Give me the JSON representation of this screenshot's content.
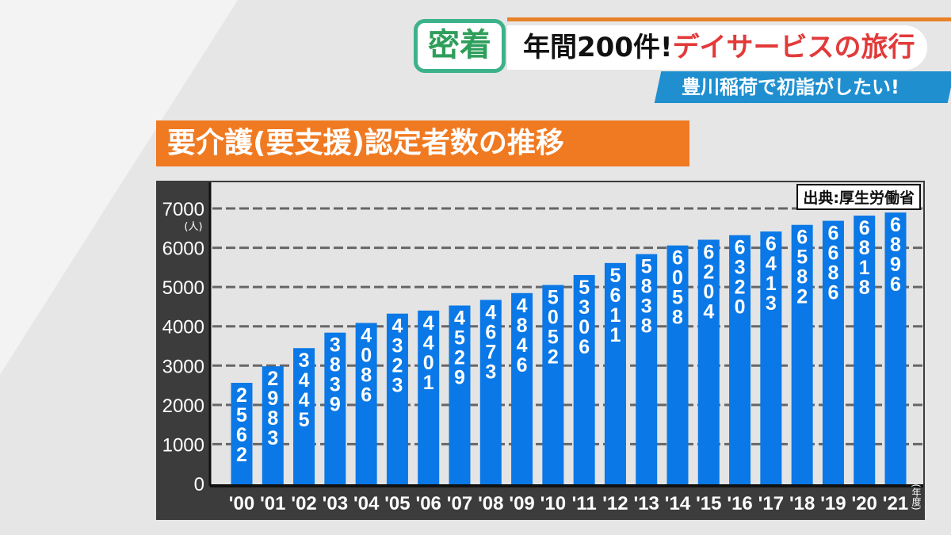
{
  "header": {
    "logo": "密着",
    "headline_black": "年間200件!",
    "headline_red": "デイサービスの旅行",
    "subtitle": "豊川稲荷で初詣がしたい!"
  },
  "colors": {
    "bar": "#0a78e6",
    "title_bg": "#f07a22",
    "subtitle_bg": "#1f8fd0",
    "headline_red": "#e23a3a"
  },
  "chart_data": {
    "type": "bar",
    "title": "要介護(要支援)認定者数の推移",
    "source": "出典:厚生労働省",
    "ylabel": "(人)",
    "xlabel": "(年度)",
    "ylim": [
      0,
      7000
    ],
    "yticks": [
      0,
      1000,
      2000,
      3000,
      4000,
      5000,
      6000,
      7000
    ],
    "grid": true,
    "categories": [
      "'00",
      "'01",
      "'02",
      "'03",
      "'04",
      "'05",
      "'06",
      "'07",
      "'08",
      "'09",
      "'10",
      "'11",
      "'12",
      "'13",
      "'14",
      "'15",
      "'16",
      "'17",
      "'18",
      "'19",
      "'20",
      "'21"
    ],
    "values": [
      2562,
      2983,
      3445,
      3839,
      4086,
      4323,
      4401,
      4529,
      4673,
      4846,
      5052,
      5306,
      5611,
      5838,
      6058,
      6204,
      6320,
      6413,
      6582,
      6686,
      6818,
      6896
    ]
  }
}
